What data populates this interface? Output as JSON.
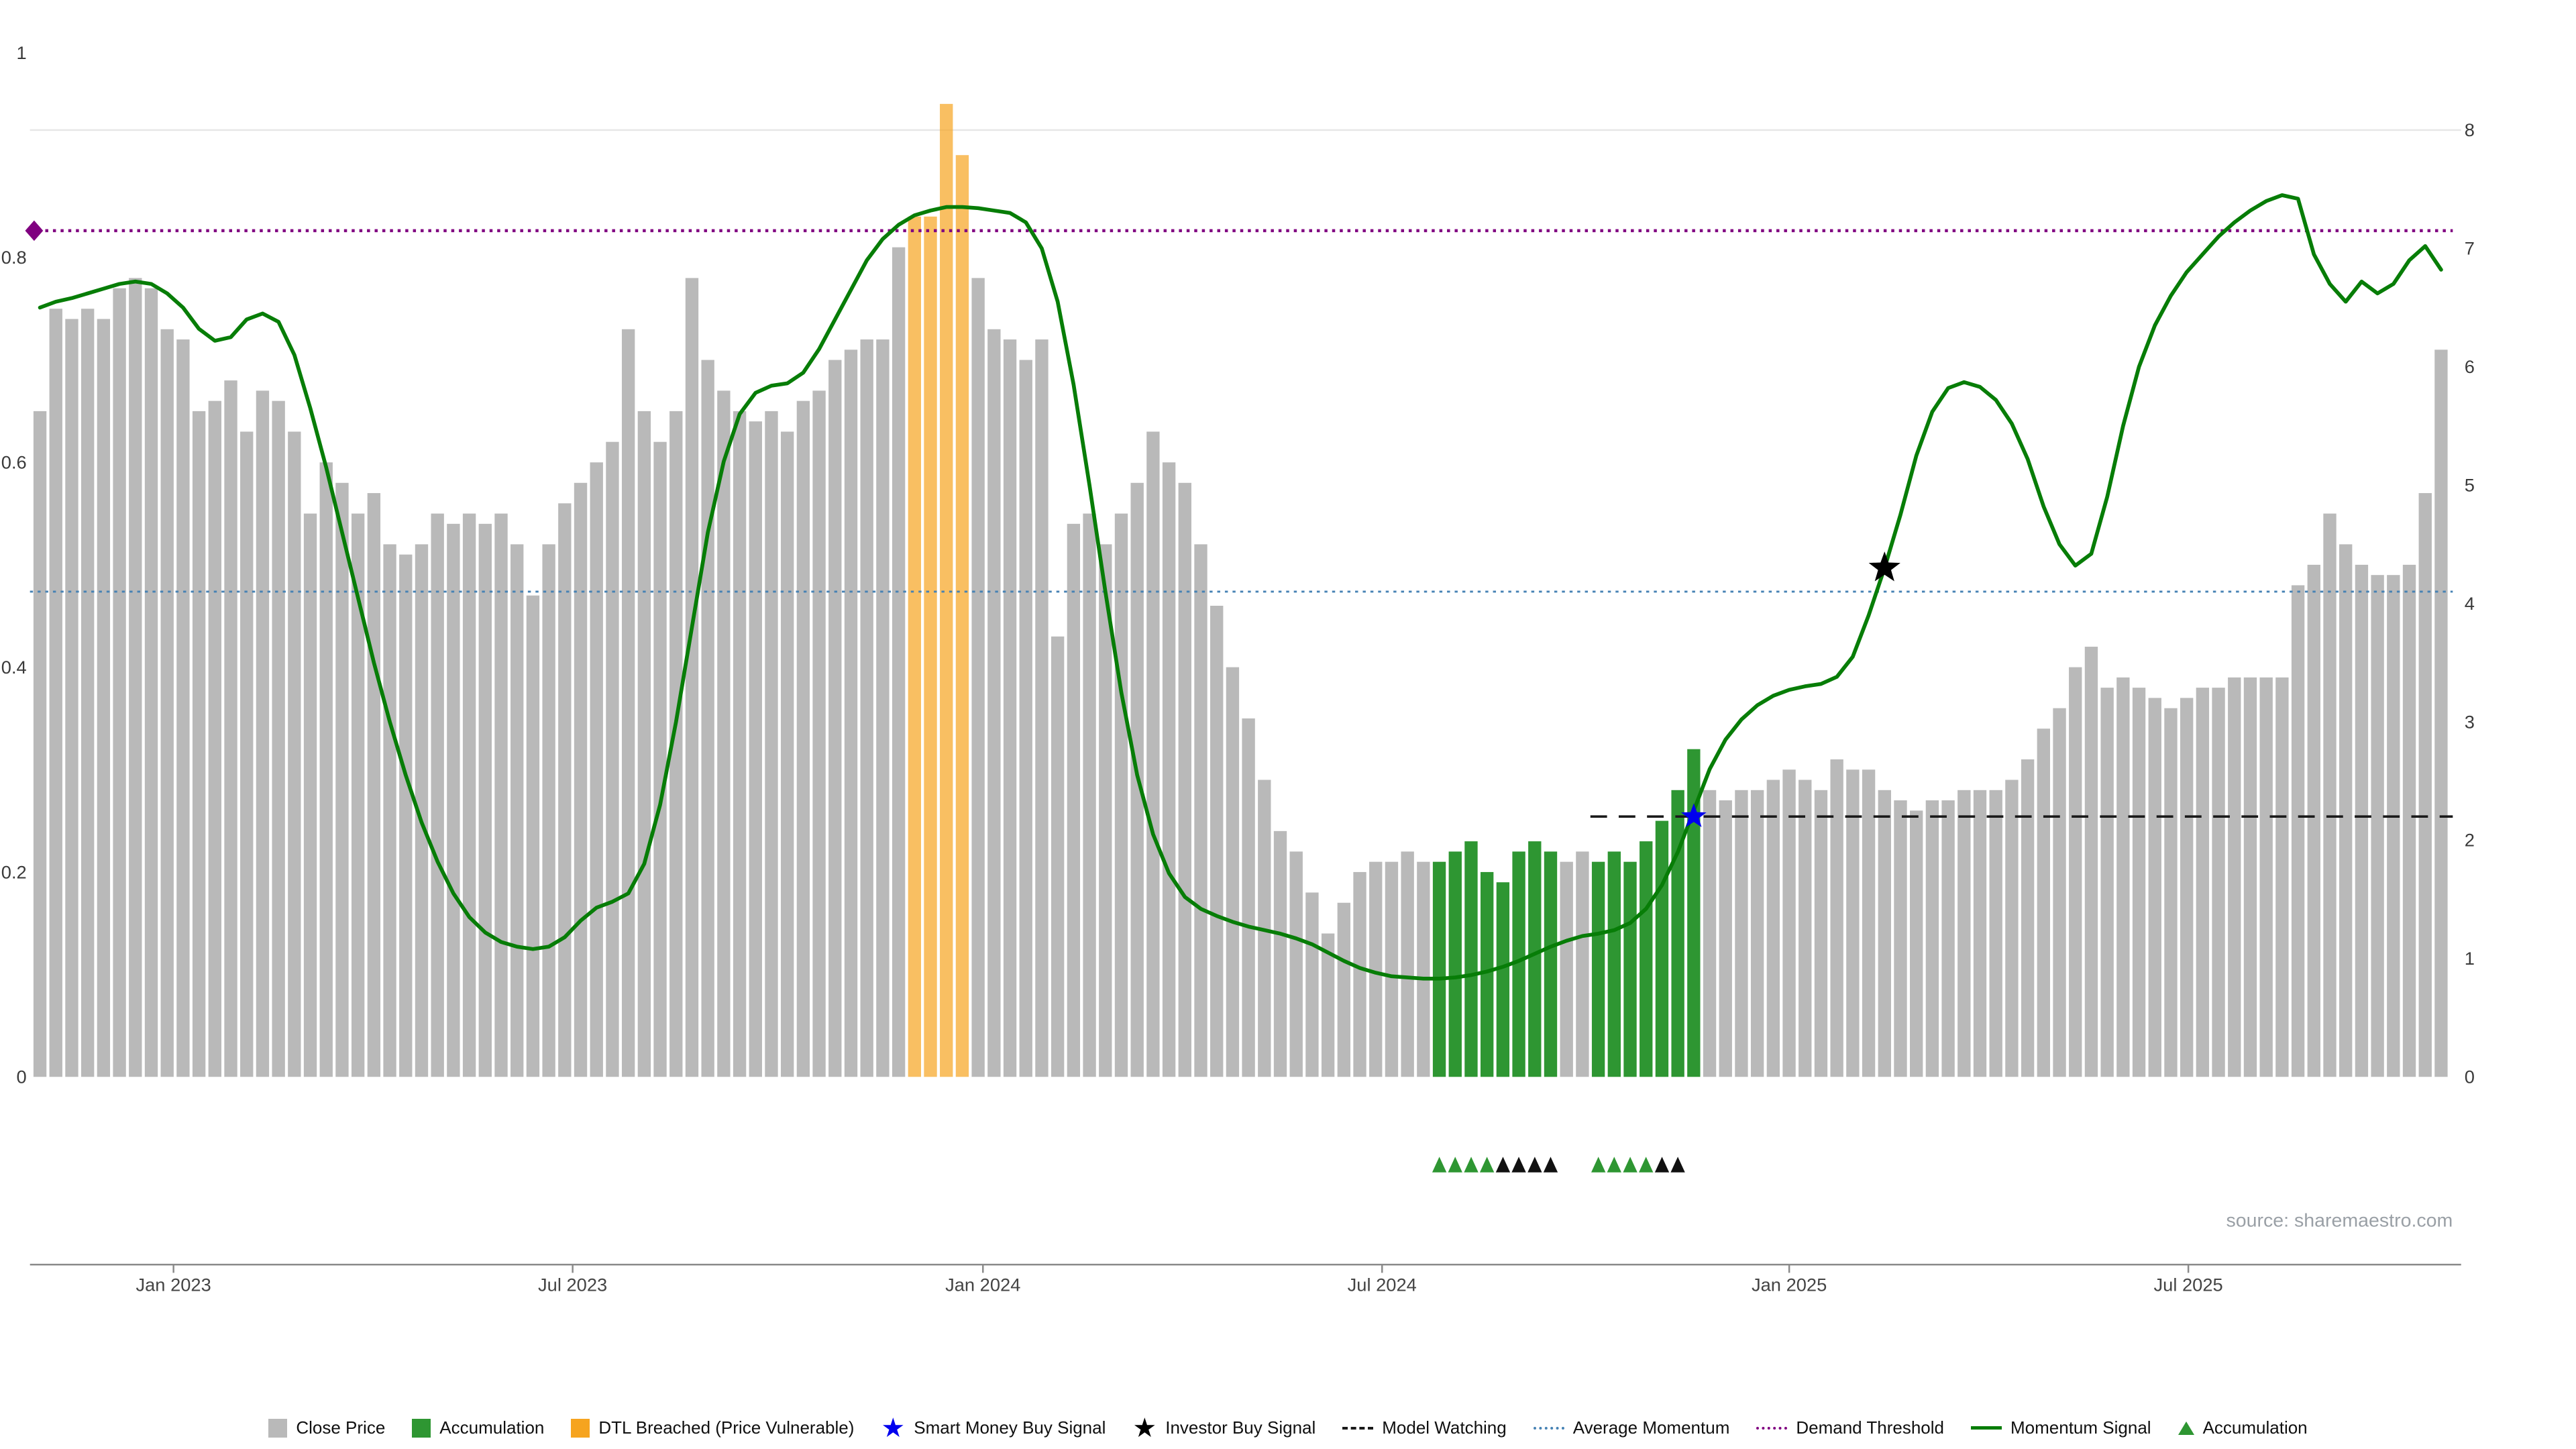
{
  "source_text": "source: sharemaestro.com",
  "colors": {
    "close_price": "#b9b9b9",
    "accumulation_bar": "#2e9632",
    "dtl_bar": "#f6a41f",
    "momentum_line": "#077d07",
    "demand_threshold": "#800080",
    "average_momentum": "#4682b4",
    "model_watching": "#1a1a1a",
    "smart_money_star": "#0000ee",
    "investor_star": "#000000",
    "accumulation_marker": "#2e9632",
    "secondary_marker": "#111111",
    "grid": "#e7e7e7",
    "axis_line": "#8a8a8a"
  },
  "chart_data": {
    "type": "bar+line",
    "x_unit": "weekly",
    "bars": {
      "name": "Close Price (normalized 0-1, left axis)",
      "values": [
        0.65,
        0.75,
        0.74,
        0.75,
        0.74,
        0.77,
        0.78,
        0.77,
        0.73,
        0.72,
        0.65,
        0.66,
        0.68,
        0.63,
        0.67,
        0.66,
        0.63,
        0.55,
        0.6,
        0.58,
        0.55,
        0.57,
        0.52,
        0.51,
        0.52,
        0.55,
        0.54,
        0.55,
        0.54,
        0.55,
        0.52,
        0.47,
        0.52,
        0.56,
        0.58,
        0.6,
        0.62,
        0.73,
        0.65,
        0.62,
        0.65,
        0.78,
        0.7,
        0.67,
        0.65,
        0.64,
        0.65,
        0.63,
        0.66,
        0.67,
        0.7,
        0.71,
        0.72,
        0.72,
        0.81,
        0.84,
        0.84,
        0.95,
        0.9,
        0.78,
        0.73,
        0.72,
        0.7,
        0.72,
        0.43,
        0.54,
        0.55,
        0.52,
        0.55,
        0.58,
        0.63,
        0.6,
        0.58,
        0.52,
        0.46,
        0.4,
        0.35,
        0.29,
        0.24,
        0.22,
        0.18,
        0.14,
        0.17,
        0.2,
        0.21,
        0.21,
        0.22,
        0.21,
        0.21,
        0.22,
        0.23,
        0.2,
        0.19,
        0.22,
        0.23,
        0.22,
        0.21,
        0.22,
        0.21,
        0.22,
        0.21,
        0.23,
        0.25,
        0.28,
        0.32,
        0.28,
        0.27,
        0.28,
        0.28,
        0.29,
        0.3,
        0.29,
        0.28,
        0.31,
        0.3,
        0.3,
        0.28,
        0.27,
        0.26,
        0.27,
        0.27,
        0.28,
        0.28,
        0.28,
        0.29,
        0.31,
        0.34,
        0.36,
        0.4,
        0.42,
        0.38,
        0.39,
        0.38,
        0.37,
        0.36,
        0.37,
        0.38,
        0.38,
        0.39,
        0.39,
        0.39,
        0.39,
        0.48,
        0.5,
        0.55,
        0.52,
        0.5,
        0.49,
        0.49,
        0.5,
        0.57,
        0.71
      ],
      "types_runs": [
        [
          "c",
          55
        ],
        [
          "d",
          4
        ],
        [
          "c",
          29
        ],
        [
          "a",
          8
        ],
        [
          "c",
          2
        ],
        [
          "a",
          7
        ],
        [
          "c",
          47
        ]
      ],
      "type_meaning": {
        "c": "Close Price",
        "a": "Accumulation",
        "d": "DTL Breached (Price Vulnerable)"
      }
    },
    "momentum": {
      "name": "Momentum Signal (right axis)",
      "values": [
        6.5,
        6.55,
        6.58,
        6.62,
        6.66,
        6.7,
        6.72,
        6.7,
        6.62,
        6.5,
        6.32,
        6.22,
        6.25,
        6.4,
        6.45,
        6.38,
        6.1,
        5.65,
        5.15,
        4.6,
        4.05,
        3.5,
        3.0,
        2.55,
        2.15,
        1.82,
        1.55,
        1.35,
        1.22,
        1.14,
        1.1,
        1.08,
        1.1,
        1.18,
        1.32,
        1.43,
        1.48,
        1.55,
        1.8,
        2.3,
        3.0,
        3.8,
        4.6,
        5.2,
        5.6,
        5.78,
        5.84,
        5.86,
        5.95,
        6.15,
        6.4,
        6.65,
        6.9,
        7.08,
        7.2,
        7.28,
        7.32,
        7.35,
        7.35,
        7.34,
        7.32,
        7.3,
        7.22,
        7.0,
        6.55,
        5.85,
        5.0,
        4.1,
        3.25,
        2.55,
        2.05,
        1.72,
        1.52,
        1.42,
        1.36,
        1.31,
        1.27,
        1.24,
        1.21,
        1.17,
        1.12,
        1.05,
        0.98,
        0.92,
        0.88,
        0.85,
        0.84,
        0.83,
        0.83,
        0.84,
        0.86,
        0.89,
        0.93,
        0.98,
        1.04,
        1.1,
        1.15,
        1.19,
        1.21,
        1.24,
        1.3,
        1.42,
        1.62,
        1.9,
        2.25,
        2.6,
        2.85,
        3.02,
        3.14,
        3.22,
        3.27,
        3.3,
        3.32,
        3.38,
        3.55,
        3.9,
        4.3,
        4.75,
        5.25,
        5.62,
        5.82,
        5.87,
        5.83,
        5.72,
        5.52,
        5.22,
        4.82,
        4.5,
        4.32,
        4.42,
        4.9,
        5.5,
        6.0,
        6.35,
        6.6,
        6.8,
        6.95,
        7.1,
        7.22,
        7.32,
        7.4,
        7.45,
        7.42,
        6.95,
        6.7,
        6.55,
        6.72,
        6.62,
        6.7,
        6.9,
        7.02,
        6.82
      ]
    },
    "hlines": [
      {
        "name": "Demand Threshold",
        "value": 7.15,
        "style": "dotted",
        "color_key": "demand_threshold",
        "width": 1.8
      },
      {
        "name": "Average Momentum",
        "value": 4.1,
        "style": "dotted",
        "color_key": "average_momentum",
        "width": 1.2
      },
      {
        "name": "Model Watching",
        "value": 2.2,
        "style": "dashed",
        "color_key": "model_watching",
        "width": 1.5,
        "start_i": 97.5
      }
    ],
    "markers": {
      "smart_money_buy": {
        "i": 104,
        "value": 2.2
      },
      "investor_buy": {
        "i": 116,
        "value": 4.3
      },
      "demand_diamond": {
        "value": 7.15
      }
    },
    "accumulation_markers": [
      {
        "i": 88,
        "kind": "accumulation"
      },
      {
        "i": 89,
        "kind": "accumulation"
      },
      {
        "i": 90,
        "kind": "accumulation"
      },
      {
        "i": 91,
        "kind": "accumulation"
      },
      {
        "i": 92,
        "kind": "secondary"
      },
      {
        "i": 93,
        "kind": "secondary"
      },
      {
        "i": 94,
        "kind": "secondary"
      },
      {
        "i": 95,
        "kind": "secondary"
      },
      {
        "i": 98,
        "kind": "accumulation"
      },
      {
        "i": 99,
        "kind": "accumulation"
      },
      {
        "i": 100,
        "kind": "accumulation"
      },
      {
        "i": 101,
        "kind": "accumulation"
      },
      {
        "i": 102,
        "kind": "secondary"
      },
      {
        "i": 103,
        "kind": "secondary"
      }
    ],
    "left_axis": {
      "range": [
        0,
        1
      ],
      "ticks": [
        "0",
        "0.2",
        "0.4",
        "0.6",
        "0.8",
        "1"
      ]
    },
    "right_axis": {
      "range": [
        0,
        8
      ],
      "ticks": [
        "0",
        "1",
        "2",
        "3",
        "4",
        "5",
        "6",
        "7",
        "8"
      ]
    },
    "x_axis": {
      "ticks": [
        {
          "label": "Jan 2023",
          "i": 8.4
        },
        {
          "label": "Jul 2023",
          "i": 33.5
        },
        {
          "label": "Jan 2024",
          "i": 59.3
        },
        {
          "label": "Jul 2024",
          "i": 84.4
        },
        {
          "label": "Jan 2025",
          "i": 110.0
        },
        {
          "label": "Jul 2025",
          "i": 135.1
        }
      ]
    },
    "grid": "single top line",
    "legend_position": "bottom center"
  },
  "legend": [
    {
      "id": "close-price",
      "swatch": "square",
      "color": "#b9b9b9",
      "label": "Close Price",
      "icon": "gray-square-swatch"
    },
    {
      "id": "accumulation-bars",
      "swatch": "square",
      "color": "#2e9632",
      "label": "Accumulation",
      "icon": "green-square-swatch"
    },
    {
      "id": "dtl-breached",
      "swatch": "square",
      "color": "#f6a41f",
      "label": "DTL Breached (Price Vulnerable)",
      "icon": "orange-square-swatch"
    },
    {
      "id": "smart-money-buy-signal",
      "swatch": "star",
      "color": "#0000ee",
      "label": "Smart Money Buy Signal",
      "icon": "blue-star-icon"
    },
    {
      "id": "investor-buy-signal",
      "swatch": "star",
      "color": "#000000",
      "label": "Investor Buy Signal",
      "icon": "black-star-icon"
    },
    {
      "id": "model-watching",
      "swatch": "dashed",
      "color": "#1a1a1a",
      "label": "Model Watching",
      "icon": "black-dashed-line-swatch"
    },
    {
      "id": "average-momentum",
      "swatch": "dotted",
      "color": "#4682b4",
      "label": "Average Momentum",
      "icon": "blue-dotted-line-swatch"
    },
    {
      "id": "demand-threshold",
      "swatch": "dotted",
      "color": "#800080",
      "label": "Demand Threshold",
      "icon": "purple-dotted-line-swatch"
    },
    {
      "id": "momentum-signal",
      "swatch": "line",
      "color": "#077d07",
      "label": "Momentum Signal",
      "icon": "green-line-swatch"
    },
    {
      "id": "accumulation-markers",
      "swatch": "triangle",
      "color": "#2e9632",
      "label": "Accumulation",
      "icon": "green-triangle-icon"
    }
  ]
}
